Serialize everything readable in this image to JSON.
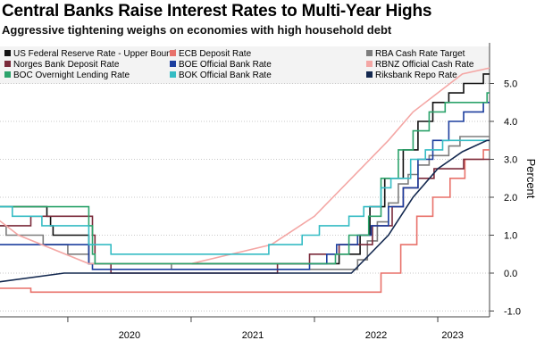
{
  "chart_data": {
    "type": "line",
    "title": "Central Banks Raise Interest Rates to Multi-Year Highs",
    "subtitle": "Aggressive tightening weighs on economies with high household debt",
    "xlabel": "",
    "ylabel": "Percent",
    "xlim": [
      2019.4,
      2023.25
    ],
    "ylim": [
      -1.1,
      5.8
    ],
    "yticks": [
      -1.0,
      0.0,
      1.0,
      2.0,
      3.0,
      4.0,
      5.0
    ],
    "ytick_labels": [
      "-1.0",
      "0.0",
      "1.0",
      "2.0",
      "3.0",
      "4.0",
      "5.0"
    ],
    "xticks": [
      2020,
      2021,
      2022,
      2023
    ],
    "xtick_labels": [
      "2020",
      "2021",
      "2022",
      "2023"
    ],
    "grid": "horizontal-dotted",
    "legend_position": "top-left",
    "series": [
      {
        "name": "US Federal Reserve Rate - Upper Bound",
        "color": "#111111",
        "step": true,
        "points": [
          [
            2019.4,
            1.75
          ],
          [
            2019.75,
            1.75
          ],
          [
            2019.83,
            1.5
          ],
          [
            2019.86,
            1.25
          ],
          [
            2019.88,
            1.0
          ],
          [
            2020.17,
            0.25
          ],
          [
            2022.2,
            0.5
          ],
          [
            2022.37,
            1.0
          ],
          [
            2022.45,
            1.75
          ],
          [
            2022.57,
            2.5
          ],
          [
            2022.72,
            3.25
          ],
          [
            2022.84,
            4.0
          ],
          [
            2022.96,
            4.5
          ],
          [
            2023.09,
            4.75
          ],
          [
            2023.21,
            5.0
          ],
          [
            2023.37,
            5.25
          ],
          [
            2023.55,
            5.25
          ]
        ]
      },
      {
        "name": "ECB Deposit Rate",
        "color": "#e8716a",
        "step": true,
        "points": [
          [
            2019.4,
            -0.4
          ],
          [
            2019.7,
            -0.5
          ],
          [
            2022.54,
            0.0
          ],
          [
            2022.7,
            0.75
          ],
          [
            2022.83,
            1.5
          ],
          [
            2022.96,
            2.0
          ],
          [
            2023.1,
            2.5
          ],
          [
            2023.22,
            3.0
          ],
          [
            2023.37,
            3.25
          ],
          [
            2023.5,
            3.5
          ],
          [
            2023.55,
            3.5
          ]
        ]
      },
      {
        "name": "RBA Cash Rate Target",
        "color": "#7d7d7d",
        "step": true,
        "points": [
          [
            2019.4,
            1.5
          ],
          [
            2019.42,
            1.25
          ],
          [
            2019.5,
            1.0
          ],
          [
            2019.8,
            0.75
          ],
          [
            2020.0,
            0.5
          ],
          [
            2020.17,
            0.25
          ],
          [
            2020.84,
            0.1
          ],
          [
            2022.35,
            0.35
          ],
          [
            2022.43,
            0.85
          ],
          [
            2022.51,
            1.35
          ],
          [
            2022.6,
            1.85
          ],
          [
            2022.68,
            2.35
          ],
          [
            2022.76,
            2.6
          ],
          [
            2022.84,
            2.85
          ],
          [
            2022.93,
            3.1
          ],
          [
            2023.09,
            3.35
          ],
          [
            2023.18,
            3.6
          ],
          [
            2023.43,
            3.85
          ],
          [
            2023.55,
            4.1
          ]
        ]
      },
      {
        "name": "Norges Bank Deposit Rate",
        "color": "#7a2a3a",
        "step": true,
        "points": [
          [
            2019.4,
            1.25
          ],
          [
            2019.7,
            1.5
          ],
          [
            2020.2,
            1.0
          ],
          [
            2020.22,
            0.25
          ],
          [
            2020.35,
            0.0
          ],
          [
            2021.7,
            0.25
          ],
          [
            2021.96,
            0.5
          ],
          [
            2022.2,
            0.75
          ],
          [
            2022.47,
            1.25
          ],
          [
            2022.63,
            1.75
          ],
          [
            2022.72,
            2.25
          ],
          [
            2022.84,
            2.5
          ],
          [
            2022.97,
            2.75
          ],
          [
            2023.21,
            3.0
          ],
          [
            2023.47,
            3.25
          ],
          [
            2023.55,
            3.25
          ]
        ]
      },
      {
        "name": "BOE Official Bank Rate",
        "color": "#1c3e9e",
        "step": true,
        "points": [
          [
            2019.4,
            0.75
          ],
          [
            2020.17,
            0.25
          ],
          [
            2020.2,
            0.1
          ],
          [
            2021.96,
            0.25
          ],
          [
            2022.1,
            0.5
          ],
          [
            2022.18,
            0.75
          ],
          [
            2022.35,
            1.0
          ],
          [
            2022.46,
            1.25
          ],
          [
            2022.6,
            1.75
          ],
          [
            2022.72,
            2.25
          ],
          [
            2022.84,
            3.0
          ],
          [
            2022.96,
            3.5
          ],
          [
            2023.09,
            4.0
          ],
          [
            2023.21,
            4.25
          ],
          [
            2023.37,
            4.5
          ],
          [
            2023.55,
            4.5
          ]
        ]
      },
      {
        "name": "RBNZ Official Cash Rate",
        "color": "#f4a7a5",
        "step": false,
        "points": [
          [
            2019.4,
            1.5
          ],
          [
            2019.6,
            1.0
          ],
          [
            2020.17,
            0.25
          ],
          [
            2021.0,
            0.25
          ],
          [
            2021.65,
            0.75
          ],
          [
            2022.0,
            1.5
          ],
          [
            2022.3,
            2.5
          ],
          [
            2022.6,
            3.5
          ],
          [
            2022.8,
            4.25
          ],
          [
            2023.0,
            4.75
          ],
          [
            2023.2,
            5.25
          ],
          [
            2023.55,
            5.5
          ]
        ]
      },
      {
        "name": "BOC Overnight Lending Rate",
        "color": "#2ca36b",
        "step": true,
        "points": [
          [
            2019.4,
            1.75
          ],
          [
            2020.17,
            1.25
          ],
          [
            2020.2,
            0.5
          ],
          [
            2020.22,
            0.25
          ],
          [
            2022.17,
            0.5
          ],
          [
            2022.28,
            1.0
          ],
          [
            2022.44,
            1.5
          ],
          [
            2022.54,
            2.5
          ],
          [
            2022.68,
            3.25
          ],
          [
            2022.8,
            3.75
          ],
          [
            2022.93,
            4.25
          ],
          [
            2023.06,
            4.5
          ],
          [
            2023.4,
            4.75
          ],
          [
            2023.55,
            4.75
          ]
        ]
      },
      {
        "name": "BOK Official Bank Rate",
        "color": "#35bcc4",
        "step": true,
        "points": [
          [
            2019.4,
            1.75
          ],
          [
            2019.55,
            1.5
          ],
          [
            2019.79,
            1.25
          ],
          [
            2020.17,
            0.75
          ],
          [
            2020.35,
            0.5
          ],
          [
            2021.63,
            0.75
          ],
          [
            2021.9,
            1.0
          ],
          [
            2022.04,
            1.25
          ],
          [
            2022.28,
            1.5
          ],
          [
            2022.4,
            1.75
          ],
          [
            2022.54,
            2.25
          ],
          [
            2022.62,
            2.5
          ],
          [
            2022.78,
            3.0
          ],
          [
            2022.9,
            3.25
          ],
          [
            2023.04,
            3.5
          ],
          [
            2023.55,
            3.5
          ]
        ]
      },
      {
        "name": "Riksbank Repo Rate",
        "color": "#13284f",
        "step": false,
        "points": [
          [
            2019.4,
            -0.25
          ],
          [
            2019.97,
            0.0
          ],
          [
            2022.3,
            0.0
          ],
          [
            2022.6,
            1.0
          ],
          [
            2022.8,
            2.0
          ],
          [
            2023.0,
            2.75
          ],
          [
            2023.2,
            3.2
          ],
          [
            2023.4,
            3.5
          ],
          [
            2023.55,
            3.5
          ]
        ]
      }
    ]
  }
}
